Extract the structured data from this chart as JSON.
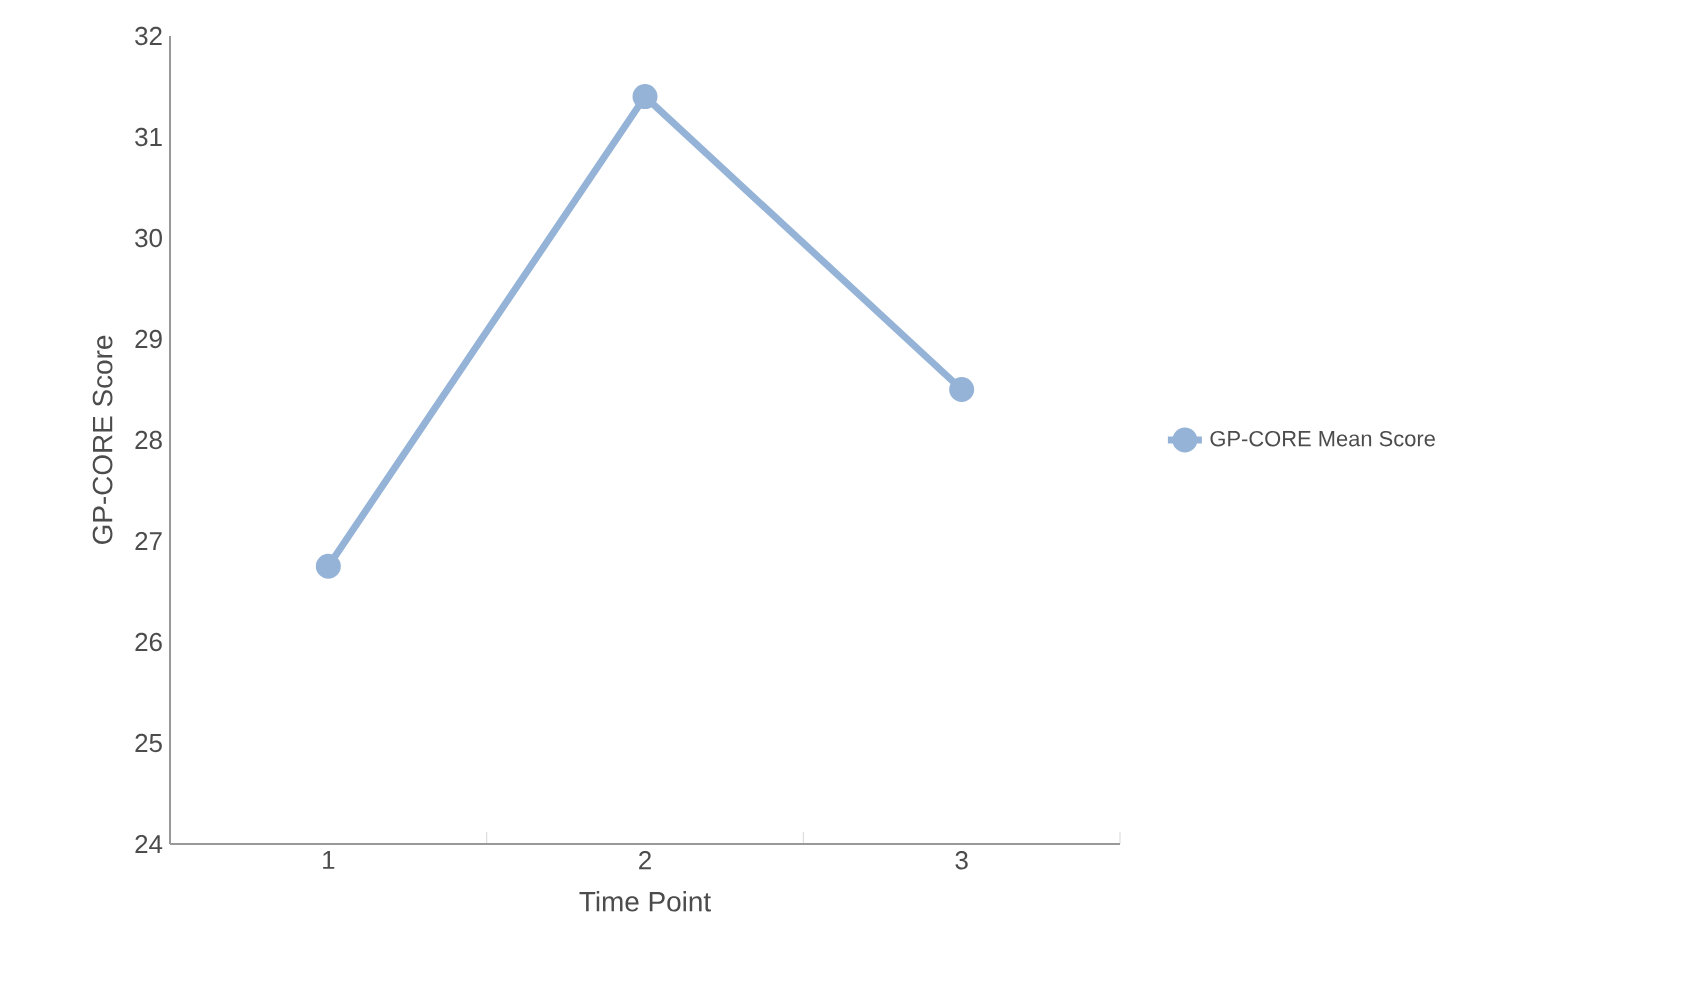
{
  "chart_data": {
    "type": "line",
    "xlabel": "Time Point",
    "ylabel": "GP-CORE Score",
    "categories": [
      "1",
      "2",
      "3"
    ],
    "series": [
      {
        "name": "GP-CORE Mean Score",
        "color": "#95b3d7",
        "values": [
          26.75,
          31.4,
          28.5
        ]
      }
    ],
    "ylim": [
      24,
      32
    ],
    "yticks": [
      24,
      25,
      26,
      27,
      28,
      29,
      30,
      31,
      32
    ],
    "grid": false,
    "legend": "right",
    "marker": "circle",
    "line_style": "solid"
  }
}
